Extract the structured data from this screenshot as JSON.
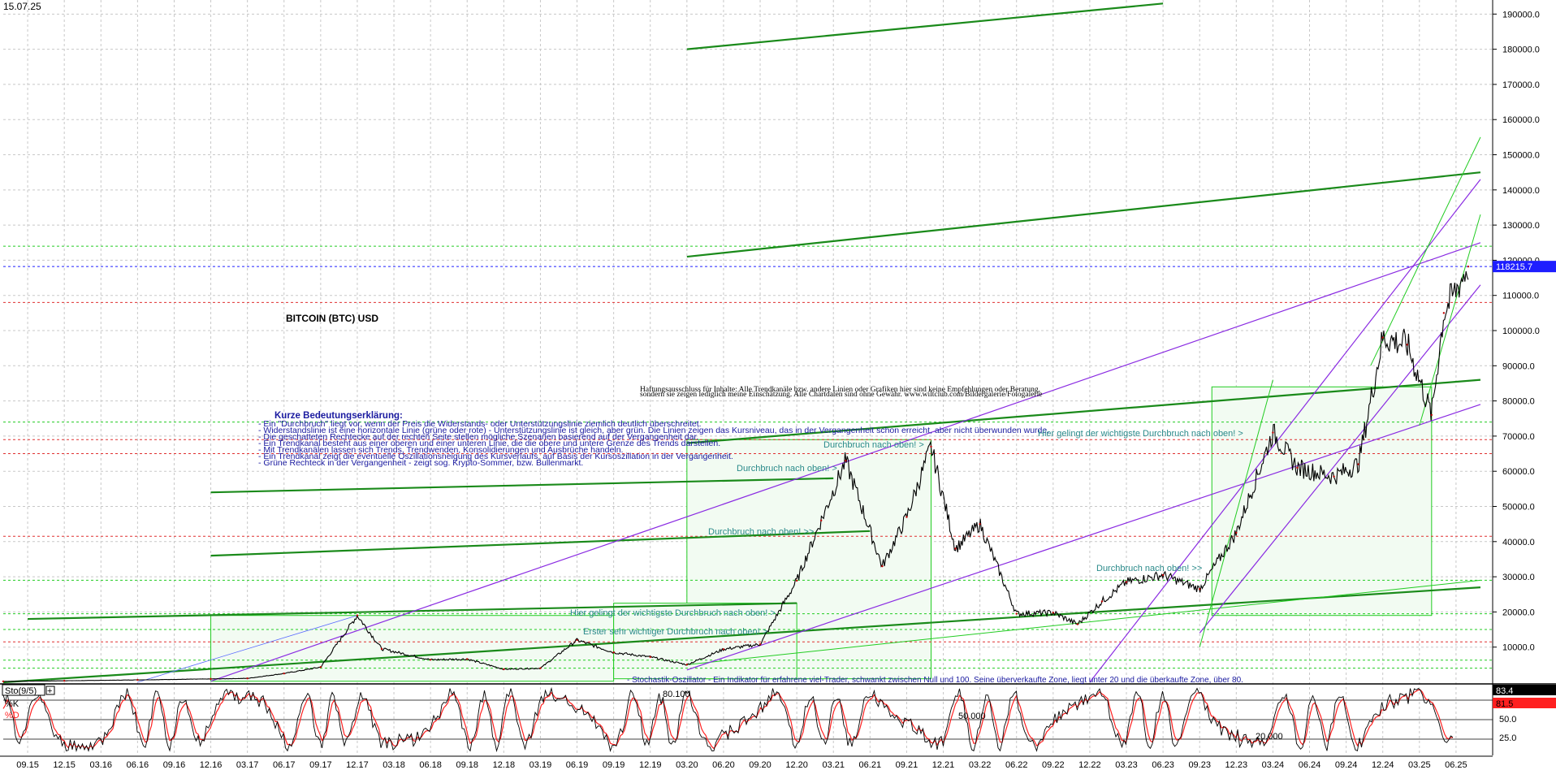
{
  "date_label": "15.07.25",
  "chart_title": "BITCOIN (BTC) USD",
  "disclaimer": [
    "Haftungsausschluss für Inhalte: Alle Trendkanäle bzw. andere Linien oder Grafiken hier sind keine Empfehlungen oder Beratung,",
    "sondern sie zeigen lediglich meine Einschätzung. Alle Chartdaten sind ohne Gewähr. www.wiltclub.com/Bildergalerie/Fotogalerie"
  ],
  "legend": {
    "heading": "Kurze Bedeutungserklärung:",
    "lines": [
      "- Ein \"Durchbruch\" liegt vor, wenn der Preis die Widerstands- oder Unterstützungslinie ziemlich deutlich überschreitet.",
      "- Widerstandslinie ist eine horizontale Linie (grüne oder rote) - Unterstützungslinie ist gleich, aber grün. Die Linien zeigen das Kursniveau, das in der Vergangenheit schon erreicht, aber nicht überwunden wurde.",
      "- Die geschatteten Rechtecke auf der rechten Seite stellen mögliche Szenarien basierend auf der Vergangenheit dar.",
      "- Ein Trendkanal besteht aus einer oberen und einer unteren Linie, die die obere und untere Grenze des Trends darstellen.",
      "- Mit Trendkanälen lassen sich Trends, Trendwenden, Konsolidierungen und Ausbrüche handeln.",
      "- Ein Trendkanal zeigt die eventuelle Oszillationsneigung des Kursverlaufs, auf Basis der Kursoszillation in der Vergangenheit.",
      "- Grüne Rechteck in der Vergangenheit - zeigt sog. Krypto-Sommer, bzw. Bullenmarkt."
    ]
  },
  "annotations": {
    "breakout_2021_top": "Durchbruch nach oben! >",
    "breakout_2020_upper": "Durchbruch nach oben! >",
    "breakout_2020_lower": "Durchbruch nach oben! >>",
    "breakout_2023": "Durchbruch nach oben! >>",
    "key_breakout_2020": "Hier gelingt der wichtigste Durchbruch nach oben! >",
    "key_breakout_2024": "Hier gelingt der wichtigste Durchbruch nach oben! >",
    "first_breakout_2019": "Erster sehr wichtiger Durchbruch nach oben! >",
    "stochastic_note": "- Stochastik-Oszillator - Ein Indikator für erfahrene viel-Trader, schwankt zwischen Null und 100. Seine überverkaufte Zone, liegt unter 20 und die überkaufte Zone, über 80."
  },
  "price_tag": {
    "label": "118215.7",
    "value": 118215.7,
    "color": "#1e1eff"
  },
  "stochastic": {
    "title": "Sto(9/5)",
    "k_label": "%K",
    "d_label": "%D",
    "k_value": "83.4",
    "d_value": "81.5",
    "k_color": "#000000",
    "d_color": "#ff2020",
    "axis_labels": [
      "50.0",
      "25.0"
    ],
    "level_labels": {
      "upper": "80.100",
      "middle": "50.000",
      "lower": "20.000"
    }
  },
  "colors": {
    "channel_green": "#1a8a1a",
    "trend_purple": "#8a2be2",
    "bright_green": "#22cc22",
    "red_dotted": "#e03030",
    "grid": "#c8c8c8"
  },
  "chart_data": {
    "type": "line",
    "title": "BITCOIN (BTC) USD",
    "y_axis_ticks": [
      10000,
      20000,
      30000,
      40000,
      50000,
      60000,
      70000,
      80000,
      90000,
      100000,
      110000,
      120000,
      130000,
      140000,
      150000,
      160000,
      170000,
      180000,
      190000
    ],
    "y_tick_labels": [
      "10000.0",
      "20000.0",
      "30000.0",
      "40000.0",
      "50000.0",
      "60000.0",
      "70000.0",
      "80000.0",
      "90000.0",
      "100000.0",
      "110000.0",
      "120000.0",
      "130000.0",
      "140000.0",
      "150000.0",
      "160000.0",
      "170000.0",
      "180000.0",
      "190000.0"
    ],
    "ylim": [
      0,
      194000
    ],
    "x_tick_labels": [
      "09.15",
      "12.15",
      "03.16",
      "06.16",
      "09.16",
      "12.16",
      "03.17",
      "06.17",
      "09.17",
      "12.17",
      "03.18",
      "06.18",
      "09.18",
      "12.18",
      "03.19",
      "06.19",
      "09.19",
      "12.19",
      "03.20",
      "06.20",
      "09.20",
      "12.20",
      "03.21",
      "06.21",
      "09.21",
      "12.21",
      "03.22",
      "06.22",
      "09.22",
      "12.22",
      "03.23",
      "06.23",
      "09.23",
      "12.23",
      "03.24",
      "06.24",
      "09.24",
      "12.24",
      "03.25",
      "06.25"
    ],
    "x_range": [
      "2015-07",
      "2025-09"
    ],
    "grid": true,
    "series": [
      {
        "x": [
          "2015-07",
          "2015-12",
          "2016-06",
          "2016-12",
          "2017-03",
          "2017-06",
          "2017-09",
          "2017-12",
          "2018-02",
          "2018-06",
          "2018-09",
          "2018-12",
          "2019-03",
          "2019-06",
          "2019-09",
          "2019-12",
          "2020-03",
          "2020-06",
          "2020-09",
          "2020-12",
          "2021-02",
          "2021-04",
          "2021-07",
          "2021-09",
          "2021-11",
          "2022-01",
          "2022-03",
          "2022-06",
          "2022-09",
          "2022-11",
          "2023-01",
          "2023-03",
          "2023-06",
          "2023-09",
          "2023-12",
          "2024-03",
          "2024-05",
          "2024-08",
          "2024-10",
          "2024-12",
          "2025-02",
          "2025-04",
          "2025-05",
          "2025-07"
        ],
        "values": [
          250,
          430,
          670,
          950,
          1100,
          2500,
          4300,
          19000,
          9500,
          6400,
          6600,
          3700,
          4000,
          12000,
          8500,
          7200,
          5000,
          9400,
          10800,
          28900,
          46000,
          63000,
          33000,
          47000,
          67000,
          38000,
          45000,
          19500,
          19800,
          16500,
          23000,
          28500,
          30500,
          26500,
          42500,
          71000,
          61000,
          58500,
          62000,
          98000,
          96000,
          76000,
          105000,
          118215.7
        ]
      }
    ]
  }
}
